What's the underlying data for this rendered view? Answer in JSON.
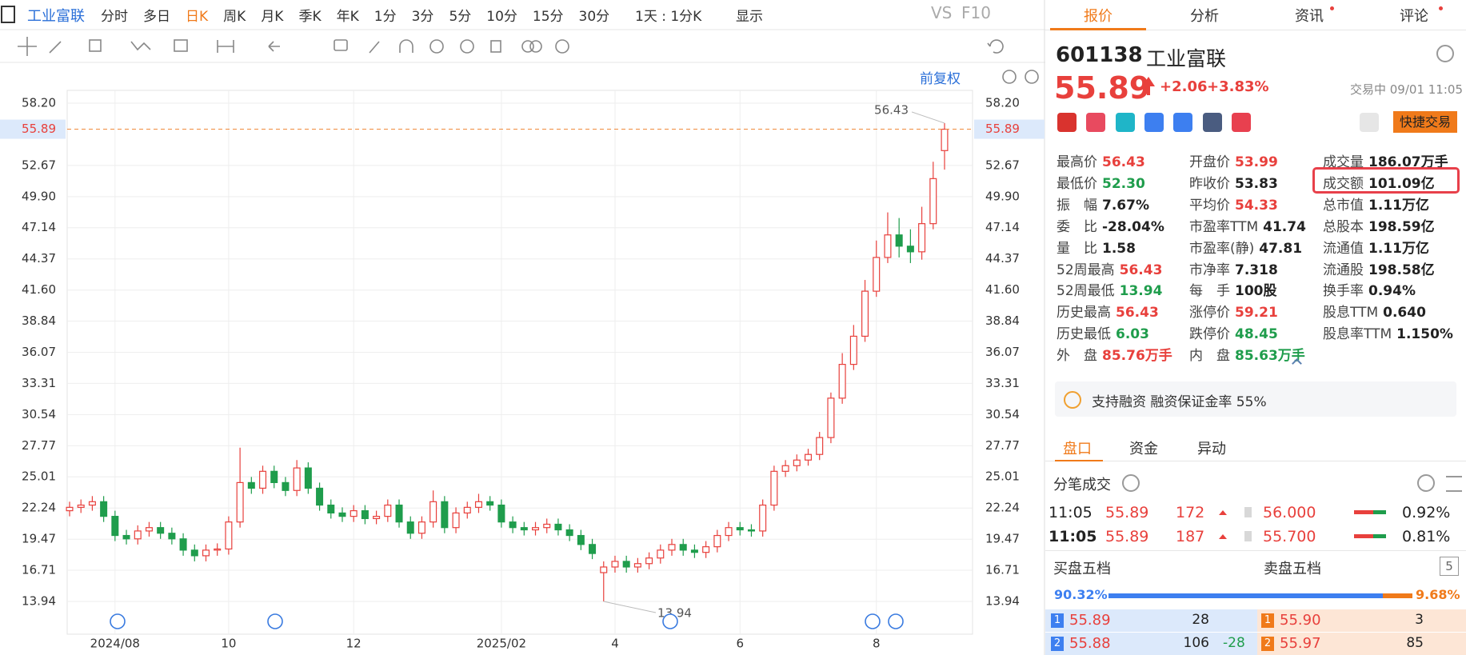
{
  "toolbar": {
    "stock_name": "工业富联",
    "periods": [
      "分时",
      "多日",
      "日K",
      "周K",
      "月K",
      "季K",
      "年K",
      "1分",
      "3分",
      "5分",
      "10分",
      "15分",
      "30分"
    ],
    "active_period": 2,
    "interval": "1天 : 1分K",
    "display": "显示",
    "compare": "VS",
    "f10": "F10"
  },
  "chart_data": {
    "type": "candlestick",
    "adjust": "前复权",
    "categories": [
      null,
      null,
      null,
      null,
      "2024/08",
      null,
      null,
      null,
      null,
      null,
      null,
      null,
      null,
      null,
      "10",
      null,
      null,
      null,
      null,
      null,
      null,
      null,
      null,
      null,
      null,
      "12",
      null,
      null,
      null,
      null,
      null,
      null,
      null,
      null,
      null,
      null,
      null,
      null,
      "2025/02",
      null,
      null,
      null,
      null,
      null,
      null,
      null,
      null,
      null,
      "4",
      null,
      null,
      null,
      null,
      null,
      null,
      null,
      null,
      null,
      null,
      "6",
      null,
      null,
      null,
      null,
      null,
      null,
      null,
      null,
      null,
      null,
      null,
      "8",
      null,
      null,
      null,
      null,
      null,
      null
    ],
    "open": [
      22.0,
      22.3,
      22.5,
      22.8,
      21.5,
      19.8,
      19.5,
      20.2,
      20.5,
      20.0,
      19.5,
      18.5,
      18.0,
      18.5,
      18.6,
      21.0,
      24.5,
      24.0,
      25.5,
      24.5,
      23.8,
      25.8,
      24.0,
      22.5,
      21.8,
      21.5,
      22.0,
      21.3,
      21.5,
      22.5,
      21.0,
      20.0,
      21.0,
      22.8,
      20.5,
      21.8,
      22.3,
      22.8,
      22.5,
      21.0,
      20.5,
      20.3,
      20.5,
      20.8,
      20.3,
      19.8,
      19.0,
      16.5,
      17.0,
      17.5,
      17.0,
      17.3,
      17.8,
      18.5,
      19.0,
      18.5,
      18.3,
      18.8,
      19.8,
      20.5,
      20.3,
      20.2,
      22.5,
      25.5,
      26.0,
      26.5,
      27.0,
      28.5,
      32.0,
      35.0,
      37.5,
      41.5,
      44.5,
      46.5,
      45.5,
      45.0,
      47.5,
      53.99
    ],
    "high": [
      22.8,
      23.0,
      23.3,
      23.3,
      22.0,
      20.3,
      20.7,
      21.0,
      21.0,
      20.5,
      20.0,
      19.0,
      19.0,
      19.1,
      21.5,
      27.6,
      25.0,
      26.0,
      26.0,
      25.0,
      26.5,
      26.3,
      24.5,
      23.0,
      22.3,
      22.5,
      22.5,
      22.0,
      23.0,
      23.0,
      21.5,
      21.5,
      23.8,
      23.3,
      22.3,
      22.8,
      23.5,
      23.3,
      23.0,
      21.5,
      21.0,
      21.0,
      21.3,
      21.3,
      20.8,
      20.3,
      19.5,
      17.5,
      18.0,
      18.0,
      17.8,
      18.3,
      19.0,
      19.5,
      19.5,
      19.0,
      19.3,
      20.3,
      21.0,
      21.0,
      20.8,
      23.0,
      26.0,
      26.5,
      27.0,
      27.5,
      29.0,
      32.5,
      36.0,
      38.5,
      42.5,
      46.0,
      48.5,
      48.0,
      47.0,
      49.0,
      53.0,
      56.43
    ],
    "low": [
      21.5,
      21.8,
      22.0,
      21.0,
      19.3,
      19.0,
      19.0,
      19.7,
      19.5,
      19.0,
      18.0,
      17.5,
      17.5,
      18.0,
      18.1,
      20.5,
      23.5,
      23.5,
      24.0,
      23.3,
      23.3,
      23.5,
      22.0,
      21.3,
      21.0,
      21.0,
      20.8,
      20.8,
      21.0,
      20.5,
      19.5,
      19.5,
      20.5,
      20.0,
      20.0,
      21.3,
      21.8,
      22.0,
      20.5,
      20.0,
      19.8,
      19.8,
      20.0,
      19.8,
      19.3,
      18.5,
      17.7,
      13.94,
      16.5,
      16.5,
      16.5,
      16.8,
      17.3,
      18.0,
      18.0,
      17.8,
      17.8,
      18.3,
      19.3,
      19.8,
      19.7,
      19.7,
      22.0,
      25.0,
      25.5,
      26.0,
      26.5,
      28.0,
      31.5,
      34.5,
      37.0,
      41.0,
      44.0,
      44.5,
      44.0,
      44.3,
      47.0,
      52.3
    ],
    "close": [
      22.3,
      22.5,
      22.8,
      21.5,
      19.8,
      19.5,
      20.2,
      20.5,
      20.0,
      19.5,
      18.5,
      18.0,
      18.5,
      18.6,
      21.0,
      24.5,
      24.0,
      25.5,
      24.5,
      23.8,
      25.8,
      24.0,
      22.5,
      21.8,
      21.5,
      22.0,
      21.3,
      21.5,
      22.5,
      21.0,
      20.0,
      21.0,
      22.8,
      20.5,
      21.8,
      22.3,
      22.8,
      22.5,
      21.0,
      20.5,
      20.3,
      20.5,
      20.8,
      20.3,
      19.8,
      19.0,
      18.2,
      17.0,
      17.5,
      17.0,
      17.3,
      17.8,
      18.5,
      19.0,
      18.5,
      18.3,
      18.8,
      19.8,
      20.5,
      20.3,
      20.2,
      22.5,
      25.5,
      26.0,
      26.5,
      27.0,
      28.5,
      32.0,
      35.0,
      37.5,
      41.5,
      44.5,
      46.5,
      45.5,
      45.0,
      47.5,
      51.5,
      55.89
    ],
    "up_color": "#e8403c",
    "down_color": "#1f9d4c",
    "ylim": [
      11.03,
      59.34
    ],
    "yticks": [
      13.94,
      16.71,
      19.47,
      22.24,
      25.01,
      27.77,
      30.54,
      33.31,
      36.07,
      38.84,
      {
        "value": 41.6,
        "label": "41.60"
      },
      44.37,
      47.14,
      {
        "value": 49.9,
        "label": "49.90"
      },
      52.67,
      {
        "value": 58.2,
        "label": "58.20"
      }
    ],
    "last_price": 55.89,
    "high_label": 56.43,
    "low_label": 13.94,
    "grid": true
  },
  "quote": {
    "tabs": [
      "报价",
      "分析",
      "资讯",
      "评论"
    ],
    "active_tab": 0,
    "code": "601138",
    "name": "工业富联",
    "price": "55.89",
    "change": "+2.06",
    "change_pct": "+3.83%",
    "status": "交易中 09/01 11:05",
    "trade_button": "快捷交易",
    "fields": [
      [
        {
          "label": "最高价",
          "value": "56.43",
          "color": "#e8403c"
        },
        {
          "label": "最低价",
          "value": "52.30",
          "color": "#1f9d4c"
        },
        {
          "label": "振　幅",
          "value": "7.67%",
          "color": "#222222"
        },
        {
          "label": "委　比",
          "value": "-28.04%",
          "color": "#222222"
        },
        {
          "label": "量　比",
          "value": "1.58",
          "color": "#222222"
        },
        {
          "label": "52周最高",
          "value": "56.43",
          "color": "#e8403c"
        },
        {
          "label": "52周最低",
          "value": "13.94",
          "color": "#1f9d4c"
        },
        {
          "label": "历史最高",
          "value": "56.43",
          "color": "#e8403c"
        },
        {
          "label": "历史最低",
          "value": "6.03",
          "color": "#1f9d4c"
        },
        {
          "label": "外　盘",
          "value": "85.76万手",
          "color": "#e8403c"
        }
      ],
      [
        {
          "label": "开盘价",
          "value": "53.99",
          "color": "#e8403c"
        },
        {
          "label": "昨收价",
          "value": "53.83",
          "color": "#222222"
        },
        {
          "label": "平均价",
          "value": "54.33",
          "color": "#e8403c"
        },
        {
          "label": "市盈率TTM",
          "value": "41.74",
          "color": "#222222"
        },
        {
          "label": "市盈率(静)",
          "value": "47.81",
          "color": "#222222"
        },
        {
          "label": "市净率",
          "value": "7.318",
          "color": "#222222"
        },
        {
          "label": "每　手",
          "value": "100股",
          "color": "#222222"
        },
        {
          "label": "涨停价",
          "value": "59.21",
          "color": "#e8403c"
        },
        {
          "label": "跌停价",
          "value": "48.45",
          "color": "#1f9d4c"
        },
        {
          "label": "内　盘",
          "value": "85.63万手",
          "color": "#1f9d4c"
        }
      ],
      [
        {
          "label": "成交量",
          "value": "186.07万手",
          "color": "#222222"
        },
        {
          "label": "成交额",
          "value": "101.09亿",
          "color": "#222222"
        },
        {
          "label": "总市值",
          "value": "1.11万亿",
          "color": "#222222"
        },
        {
          "label": "总股本",
          "value": "198.59亿",
          "color": "#222222"
        },
        {
          "label": "流通值",
          "value": "1.11万亿",
          "color": "#222222"
        },
        {
          "label": "流通股",
          "value": "198.58亿",
          "color": "#222222"
        },
        {
          "label": "换手率",
          "value": "0.94%",
          "color": "#222222"
        },
        {
          "label": "股息TTM",
          "value": "0.640",
          "color": "#222222"
        },
        {
          "label": "股息率TTM",
          "value": "1.150%",
          "color": "#222222"
        }
      ]
    ],
    "highlight": [
      2,
      1
    ]
  },
  "margin": "支持融资 融资保证金率 55%",
  "panel": {
    "tabs": [
      "盘口",
      "资金",
      "异动"
    ],
    "active_tab": 0,
    "ticks_title": "分笔成交",
    "ticks": [
      {
        "time": "11:05",
        "price": "55.89",
        "volume": "172",
        "bid": "56.000",
        "pct": "0.92%"
      },
      {
        "time": "11:05",
        "price": "55.89",
        "volume": "187",
        "bid": "55.700",
        "pct": "0.81%"
      }
    ],
    "buy_title": "买盘五档",
    "sell_title": "卖盘五档",
    "depth": "5",
    "buy_ratio": {
      "value": 90.32,
      "label": "90.32%"
    },
    "sell_ratio": {
      "value": 9.68,
      "label": "9.68%"
    },
    "book": [
      {
        "buy_level": "1",
        "buy_price": "55.89",
        "buy_volume": "28",
        "sell_level": "1",
        "sell_price": "55.90",
        "sell_volume": "3"
      },
      {
        "buy_level": "2",
        "buy_price": "55.88",
        "buy_volume": "106",
        "buy_change": "-28",
        "sell_level": "2",
        "sell_price": "55.97",
        "sell_volume": "85"
      }
    ]
  }
}
